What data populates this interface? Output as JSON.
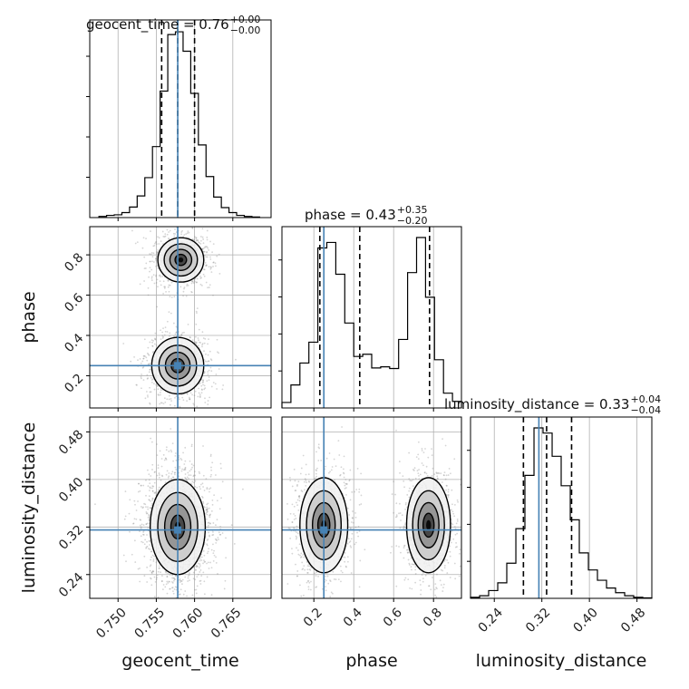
{
  "chart_data": {
    "type": "corner",
    "parameters": [
      "geocent_time",
      "phase",
      "luminosity_distance"
    ],
    "axis_labels": {
      "geocent_time": "geocent_time",
      "phase": "phase",
      "luminosity_distance": "luminosity_distance"
    },
    "ranges": {
      "geocent_time": [
        0.7463,
        0.77
      ],
      "phase": [
        0.04,
        0.94
      ],
      "luminosity_distance": [
        0.2,
        0.505
      ]
    },
    "ticks": {
      "geocent_time": [
        0.75,
        0.755,
        0.76,
        0.765
      ],
      "phase": [
        0.2,
        0.4,
        0.6,
        0.8
      ],
      "luminosity_distance": [
        0.24,
        0.32,
        0.4,
        0.48
      ]
    },
    "tick_labels": {
      "geocent_time": [
        "0.750",
        "0.755",
        "0.760",
        "0.765"
      ],
      "phase": [
        "0.2",
        "0.4",
        "0.6",
        "0.8"
      ],
      "luminosity_distance": [
        "0.24",
        "0.32",
        "0.40",
        "0.48"
      ]
    },
    "truths": {
      "geocent_time": 0.7578,
      "phase": 0.25,
      "luminosity_distance": 0.315
    },
    "titles": [
      {
        "param": "geocent_time",
        "text": "geocent_time = 0.76",
        "plus": "+0.00",
        "minus": "−0.00"
      },
      {
        "param": "phase",
        "text": "phase = 0.43",
        "plus": "+0.35",
        "minus": "−0.20"
      },
      {
        "param": "luminosity_distance",
        "text": "luminosity_distance = 0.33",
        "plus": "+0.04",
        "minus": "−0.04"
      }
    ],
    "quantiles": {
      "geocent_time": [
        0.7557,
        0.7578,
        0.76
      ],
      "phase": [
        0.23,
        0.43,
        0.78
      ],
      "luminosity_distance": [
        0.289,
        0.328,
        0.37
      ]
    },
    "histograms": {
      "geocent_time": {
        "edges": [
          0.7475,
          0.7485,
          0.7495,
          0.7505,
          0.7515,
          0.7525,
          0.7535,
          0.7545,
          0.7555,
          0.7565,
          0.7575,
          0.7585,
          0.7595,
          0.7605,
          0.7615,
          0.7625,
          0.7635,
          0.7645,
          0.7655,
          0.7665,
          0.7675,
          0.7685
        ],
        "counts": [
          2,
          4,
          5,
          9,
          19,
          39,
          72,
          128,
          228,
          330,
          335,
          300,
          224,
          131,
          74,
          37,
          18,
          9,
          4,
          2,
          1
        ]
      },
      "phase": {
        "edges": [
          0.04,
          0.085,
          0.13,
          0.175,
          0.22,
          0.265,
          0.31,
          0.355,
          0.4,
          0.445,
          0.49,
          0.535,
          0.58,
          0.625,
          0.67,
          0.715,
          0.76,
          0.805,
          0.85,
          0.895,
          0.94
        ],
        "counts": [
          10,
          42,
          82,
          120,
          292,
          302,
          244,
          155,
          94,
          98,
          73,
          75,
          72,
          125,
          247,
          311,
          202,
          88,
          27,
          12
        ]
      },
      "luminosity_distance": {
        "edges": [
          0.2,
          0.2153,
          0.2305,
          0.2458,
          0.261,
          0.2763,
          0.2915,
          0.3068,
          0.322,
          0.3373,
          0.3525,
          0.3678,
          0.383,
          0.3983,
          0.4135,
          0.4288,
          0.444,
          0.4593,
          0.4745,
          0.4898,
          0.505
        ],
        "counts": [
          2,
          5,
          15,
          30,
          68,
          135,
          238,
          330,
          320,
          275,
          218,
          152,
          88,
          55,
          35,
          20,
          11,
          5,
          2,
          1
        ]
      }
    },
    "density_2d": [
      {
        "x": "geocent_time",
        "y": "phase",
        "modes": [
          {
            "x": 0.7582,
            "y": 0.775,
            "sx": 0.0015,
            "sy": 0.055,
            "w": 0.5
          },
          {
            "x": 0.7578,
            "y": 0.25,
            "sx": 0.0017,
            "sy": 0.07,
            "w": 0.5
          }
        ]
      },
      {
        "x": "geocent_time",
        "y": "luminosity_distance",
        "modes": [
          {
            "x": 0.7578,
            "y": 0.32,
            "sx": 0.0018,
            "sy": 0.04,
            "w": 1.0
          }
        ]
      },
      {
        "x": "phase",
        "y": "luminosity_distance",
        "modes": [
          {
            "x": 0.25,
            "y": 0.323,
            "sx": 0.06,
            "sy": 0.04,
            "w": 0.5
          },
          {
            "x": 0.775,
            "y": 0.323,
            "sx": 0.055,
            "sy": 0.04,
            "w": 0.5
          }
        ]
      }
    ],
    "grid": true,
    "colors": {
      "truth": "#4682b4",
      "hist": "#000000",
      "quantile": "#000000",
      "scatter": "#888888",
      "grid": "#b0b0b0"
    }
  }
}
